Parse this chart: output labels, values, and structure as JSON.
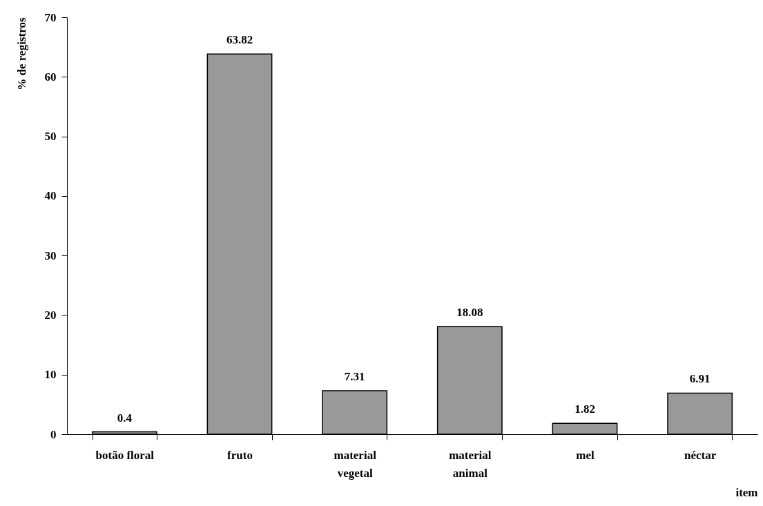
{
  "chart_data": {
    "type": "bar",
    "xlabel": "item",
    "ylabel": "% de registros",
    "categories": [
      "botão floral",
      "fruto",
      "material vegetal",
      "material animal",
      "mel",
      "néctar"
    ],
    "values": [
      0.4,
      63.82,
      7.31,
      18.08,
      1.82,
      6.91
    ],
    "color": "#999999",
    "ylim": [
      0,
      70
    ],
    "yticks": [
      0,
      10,
      20,
      30,
      40,
      50,
      60,
      70
    ],
    "data_labels": true,
    "grid": false
  }
}
